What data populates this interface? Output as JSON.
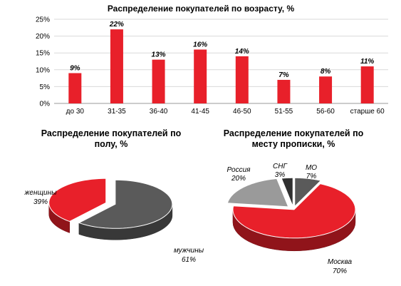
{
  "chart_data": [
    {
      "type": "bar",
      "title": "Распределение покупателей по возрасту, %",
      "categories": [
        "до 30",
        "31-35",
        "36-40",
        "41-45",
        "46-50",
        "51-55",
        "56-60",
        "старше 60"
      ],
      "values": [
        9,
        22,
        13,
        16,
        14,
        7,
        8,
        11
      ],
      "data_labels": [
        "9%",
        "22%",
        "13%",
        "16%",
        "14%",
        "7%",
        "8%",
        "11%"
      ],
      "yticks": [
        "0%",
        "5%",
        "10%",
        "15%",
        "20%",
        "25%"
      ],
      "ylim": [
        0,
        25
      ],
      "grid": true,
      "color": "#e8202a"
    },
    {
      "type": "pie",
      "title_lines": [
        "Распределение покупателей по",
        "полу, %"
      ],
      "slices": [
        {
          "label": "женщины",
          "value": 39,
          "value_label": "39%",
          "color": "#e8202a"
        },
        {
          "label": "мужчины",
          "value": 61,
          "value_label": "61%",
          "color": "#5a5a5a"
        }
      ]
    },
    {
      "type": "pie",
      "title_lines": [
        "Распределение покупателей по",
        "месту прописки, %"
      ],
      "slices": [
        {
          "label": "МО",
          "value": 7,
          "value_label": "7%",
          "color": "#5a5a5a"
        },
        {
          "label": "Москва",
          "value": 70,
          "value_label": "70%",
          "color": "#e8202a"
        },
        {
          "label": "Россия",
          "value": 20,
          "value_label": "20%",
          "color": "#9a9a9a"
        },
        {
          "label": "СНГ",
          "value": 3,
          "value_label": "3%",
          "color": "#303030"
        }
      ]
    }
  ]
}
